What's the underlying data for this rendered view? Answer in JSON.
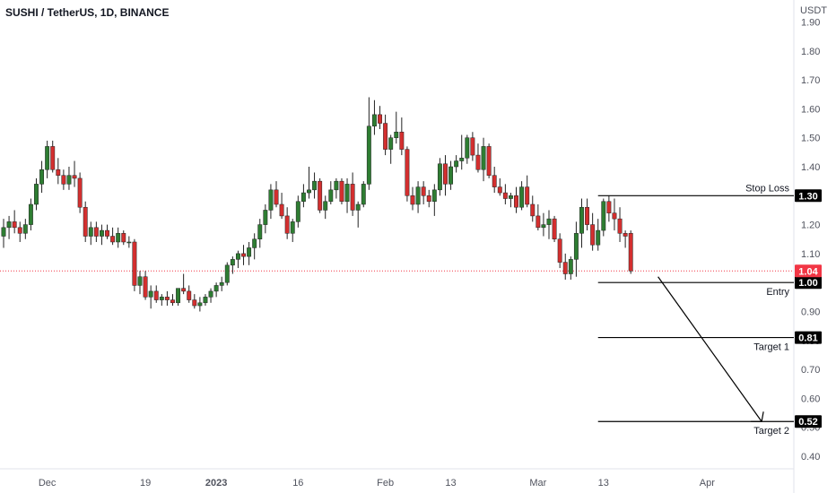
{
  "header": {
    "title": "SUSHI / TetherUS, 1D, BINANCE",
    "currency": "USDT"
  },
  "colors": {
    "up": "#26a69a",
    "up_fill": "#2e7d32",
    "down": "#d32f2f",
    "current": "#f23645",
    "level": "#000000"
  },
  "chart_data": {
    "type": "candlestick",
    "ylim": [
      0.4,
      1.9
    ],
    "y_ticks": [
      "1.90",
      "1.80",
      "1.70",
      "1.60",
      "1.50",
      "1.40",
      "1.30",
      "1.20",
      "1.10",
      "1.00",
      "0.90",
      "0.80",
      "0.70",
      "0.60",
      "0.50",
      "0.40"
    ],
    "x_ticks": [
      {
        "label": "Dec",
        "day": 8
      },
      {
        "label": "19",
        "day": 26
      },
      {
        "label": "2023",
        "day": 39
      },
      {
        "label": "16",
        "day": 54
      },
      {
        "label": "Feb",
        "day": 70
      },
      {
        "label": "13",
        "day": 82
      },
      {
        "label": "Mar",
        "day": 98
      },
      {
        "label": "13",
        "day": 110
      },
      {
        "label": "Apr",
        "day": 129
      }
    ],
    "current_price": "1.04",
    "levels": [
      {
        "name": "Stop Loss",
        "value": "1.30",
        "price": 1.3
      },
      {
        "name": "Entry",
        "value": "1.00",
        "price": 1.0
      },
      {
        "name": "Target 1",
        "value": "0.81",
        "price": 0.81
      },
      {
        "name": "Target 2",
        "value": "0.52",
        "price": 0.52
      }
    ],
    "projection": {
      "from_day": 120,
      "from_price": 1.02,
      "to_day": 139,
      "to_price": 0.52
    },
    "candles": [
      [
        1.16,
        1.22,
        1.12,
        1.19
      ],
      [
        1.19,
        1.23,
        1.15,
        1.21
      ],
      [
        1.21,
        1.25,
        1.17,
        1.19
      ],
      [
        1.19,
        1.21,
        1.14,
        1.17
      ],
      [
        1.17,
        1.22,
        1.15,
        1.2
      ],
      [
        1.2,
        1.29,
        1.18,
        1.27
      ],
      [
        1.27,
        1.36,
        1.25,
        1.34
      ],
      [
        1.34,
        1.42,
        1.31,
        1.39
      ],
      [
        1.39,
        1.49,
        1.36,
        1.47
      ],
      [
        1.47,
        1.49,
        1.38,
        1.39
      ],
      [
        1.39,
        1.43,
        1.34,
        1.37
      ],
      [
        1.37,
        1.39,
        1.32,
        1.34
      ],
      [
        1.34,
        1.4,
        1.32,
        1.37
      ],
      [
        1.37,
        1.42,
        1.33,
        1.36
      ],
      [
        1.36,
        1.38,
        1.24,
        1.26
      ],
      [
        1.26,
        1.28,
        1.14,
        1.16
      ],
      [
        1.16,
        1.21,
        1.13,
        1.19
      ],
      [
        1.19,
        1.21,
        1.14,
        1.16
      ],
      [
        1.16,
        1.2,
        1.13,
        1.18
      ],
      [
        1.18,
        1.2,
        1.15,
        1.16
      ],
      [
        1.16,
        1.19,
        1.13,
        1.14
      ],
      [
        1.14,
        1.19,
        1.12,
        1.17
      ],
      [
        1.17,
        1.18,
        1.13,
        1.14
      ],
      [
        1.14,
        1.16,
        1.12,
        1.14
      ],
      [
        1.14,
        1.15,
        0.97,
        0.99
      ],
      [
        0.99,
        1.04,
        0.96,
        1.02
      ],
      [
        1.02,
        1.04,
        0.94,
        0.95
      ],
      [
        0.95,
        0.99,
        0.91,
        0.97
      ],
      [
        0.97,
        0.99,
        0.93,
        0.94
      ],
      [
        0.94,
        0.96,
        0.92,
        0.95
      ],
      [
        0.95,
        0.97,
        0.92,
        0.94
      ],
      [
        0.94,
        0.96,
        0.92,
        0.93
      ],
      [
        0.93,
        0.98,
        0.92,
        0.98
      ],
      [
        0.98,
        1.03,
        0.96,
        0.97
      ],
      [
        0.97,
        0.99,
        0.93,
        0.94
      ],
      [
        0.94,
        0.96,
        0.91,
        0.92
      ],
      [
        0.92,
        0.95,
        0.9,
        0.93
      ],
      [
        0.93,
        0.96,
        0.92,
        0.95
      ],
      [
        0.95,
        0.98,
        0.93,
        0.97
      ],
      [
        0.97,
        1.0,
        0.95,
        0.99
      ],
      [
        0.99,
        1.02,
        0.97,
        1.0
      ],
      [
        1.0,
        1.07,
        0.99,
        1.06
      ],
      [
        1.06,
        1.09,
        1.03,
        1.08
      ],
      [
        1.08,
        1.11,
        1.05,
        1.1
      ],
      [
        1.1,
        1.13,
        1.06,
        1.09
      ],
      [
        1.09,
        1.14,
        1.06,
        1.12
      ],
      [
        1.12,
        1.17,
        1.08,
        1.15
      ],
      [
        1.15,
        1.22,
        1.12,
        1.2
      ],
      [
        1.2,
        1.27,
        1.17,
        1.25
      ],
      [
        1.25,
        1.34,
        1.22,
        1.32
      ],
      [
        1.32,
        1.35,
        1.26,
        1.27
      ],
      [
        1.27,
        1.31,
        1.22,
        1.23
      ],
      [
        1.23,
        1.26,
        1.15,
        1.17
      ],
      [
        1.17,
        1.22,
        1.14,
        1.21
      ],
      [
        1.21,
        1.3,
        1.19,
        1.28
      ],
      [
        1.28,
        1.34,
        1.26,
        1.31
      ],
      [
        1.31,
        1.4,
        1.29,
        1.32
      ],
      [
        1.32,
        1.38,
        1.29,
        1.35
      ],
      [
        1.35,
        1.36,
        1.24,
        1.25
      ],
      [
        1.25,
        1.3,
        1.22,
        1.28
      ],
      [
        1.28,
        1.35,
        1.27,
        1.32
      ],
      [
        1.32,
        1.36,
        1.29,
        1.35
      ],
      [
        1.35,
        1.36,
        1.27,
        1.28
      ],
      [
        1.28,
        1.36,
        1.24,
        1.34
      ],
      [
        1.34,
        1.38,
        1.23,
        1.25
      ],
      [
        1.25,
        1.28,
        1.19,
        1.27
      ],
      [
        1.27,
        1.35,
        1.26,
        1.34
      ],
      [
        1.34,
        1.64,
        1.32,
        1.54
      ],
      [
        1.54,
        1.63,
        1.51,
        1.58
      ],
      [
        1.58,
        1.61,
        1.53,
        1.55
      ],
      [
        1.55,
        1.58,
        1.44,
        1.46
      ],
      [
        1.46,
        1.51,
        1.41,
        1.5
      ],
      [
        1.5,
        1.59,
        1.48,
        1.52
      ],
      [
        1.52,
        1.57,
        1.44,
        1.46
      ],
      [
        1.46,
        1.47,
        1.28,
        1.3
      ],
      [
        1.3,
        1.33,
        1.25,
        1.27
      ],
      [
        1.27,
        1.35,
        1.24,
        1.33
      ],
      [
        1.33,
        1.35,
        1.27,
        1.3
      ],
      [
        1.3,
        1.32,
        1.26,
        1.28
      ],
      [
        1.28,
        1.34,
        1.23,
        1.32
      ],
      [
        1.32,
        1.43,
        1.3,
        1.41
      ],
      [
        1.41,
        1.44,
        1.3,
        1.34
      ],
      [
        1.34,
        1.42,
        1.32,
        1.4
      ],
      [
        1.4,
        1.44,
        1.38,
        1.42
      ],
      [
        1.42,
        1.51,
        1.39,
        1.43
      ],
      [
        1.43,
        1.51,
        1.41,
        1.5
      ],
      [
        1.5,
        1.52,
        1.42,
        1.44
      ],
      [
        1.44,
        1.48,
        1.38,
        1.39
      ],
      [
        1.39,
        1.5,
        1.35,
        1.47
      ],
      [
        1.47,
        1.48,
        1.36,
        1.37
      ],
      [
        1.37,
        1.4,
        1.31,
        1.33
      ],
      [
        1.33,
        1.36,
        1.3,
        1.31
      ],
      [
        1.31,
        1.34,
        1.27,
        1.29
      ],
      [
        1.29,
        1.31,
        1.26,
        1.3
      ],
      [
        1.3,
        1.33,
        1.24,
        1.26
      ],
      [
        1.26,
        1.35,
        1.25,
        1.33
      ],
      [
        1.33,
        1.37,
        1.26,
        1.27
      ],
      [
        1.27,
        1.3,
        1.21,
        1.23
      ],
      [
        1.23,
        1.27,
        1.18,
        1.19
      ],
      [
        1.19,
        1.24,
        1.16,
        1.2
      ],
      [
        1.2,
        1.25,
        1.15,
        1.22
      ],
      [
        1.22,
        1.23,
        1.14,
        1.15
      ],
      [
        1.15,
        1.17,
        1.05,
        1.07
      ],
      [
        1.07,
        1.1,
        1.01,
        1.03
      ],
      [
        1.03,
        1.09,
        1.01,
        1.08
      ],
      [
        1.08,
        1.21,
        1.02,
        1.17
      ],
      [
        1.17,
        1.29,
        1.12,
        1.26
      ],
      [
        1.26,
        1.29,
        1.18,
        1.2
      ],
      [
        1.2,
        1.24,
        1.11,
        1.13
      ],
      [
        1.13,
        1.22,
        1.11,
        1.18
      ],
      [
        1.18,
        1.29,
        1.16,
        1.28
      ],
      [
        1.28,
        1.3,
        1.21,
        1.24
      ],
      [
        1.24,
        1.29,
        1.18,
        1.22
      ],
      [
        1.22,
        1.26,
        1.14,
        1.17
      ],
      [
        1.17,
        1.18,
        1.12,
        1.16
      ],
      [
        1.17,
        1.18,
        1.03,
        1.04
      ]
    ]
  }
}
